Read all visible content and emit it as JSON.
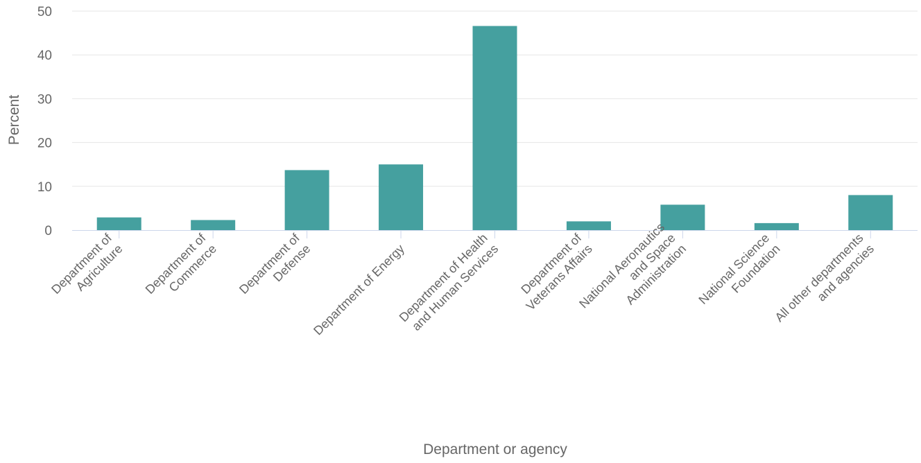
{
  "chart_data": {
    "type": "bar",
    "title": "",
    "xlabel": "Department or agency",
    "ylabel": "Percent",
    "ylim": [
      0,
      50
    ],
    "yticks": [
      0,
      10,
      20,
      30,
      40,
      50
    ],
    "grid": true,
    "legend": "none",
    "categories": [
      [
        "Department of",
        "Agriculture"
      ],
      [
        "Department of",
        "Commerce"
      ],
      [
        "Department of",
        "Defense"
      ],
      [
        "Department of Energy"
      ],
      [
        "Department of Health",
        "and Human Services"
      ],
      [
        "Department of",
        "Veterans Affairs"
      ],
      [
        "National Aeronautics",
        "and Space",
        "Administration"
      ],
      [
        "National Science",
        "Foundation"
      ],
      [
        "All other departments",
        "and agencies"
      ]
    ],
    "series": [
      {
        "values": [
          2.9,
          2.3,
          13.7,
          15.0,
          46.6,
          2.0,
          5.8,
          1.6,
          8.0
        ]
      }
    ],
    "colors": {
      "bar": "#45a09f",
      "grid": "#e6e6e6",
      "axis": "#ccd6eb",
      "text": "#666666"
    }
  }
}
